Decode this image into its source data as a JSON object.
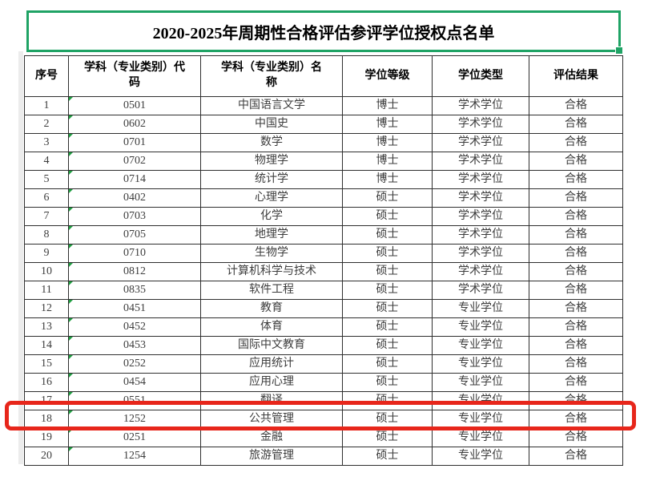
{
  "title": "2020-2025年周期性合格评估参评学位授权点名单",
  "table": {
    "headers": [
      "序号",
      "学科（专业类别）代码",
      "学科（专业类别）名称",
      "学位等级",
      "学位类型",
      "评估结果"
    ],
    "rows": [
      {
        "no": "1",
        "code": "0501",
        "name": "中国语言文学",
        "level": "博士",
        "type": "学术学位",
        "result": "合格"
      },
      {
        "no": "2",
        "code": "0602",
        "name": "中国史",
        "level": "博士",
        "type": "学术学位",
        "result": "合格"
      },
      {
        "no": "3",
        "code": "0701",
        "name": "数学",
        "level": "博士",
        "type": "学术学位",
        "result": "合格"
      },
      {
        "no": "4",
        "code": "0702",
        "name": "物理学",
        "level": "博士",
        "type": "学术学位",
        "result": "合格"
      },
      {
        "no": "5",
        "code": "0714",
        "name": "统计学",
        "level": "博士",
        "type": "学术学位",
        "result": "合格"
      },
      {
        "no": "6",
        "code": "0402",
        "name": "心理学",
        "level": "硕士",
        "type": "学术学位",
        "result": "合格"
      },
      {
        "no": "7",
        "code": "0703",
        "name": "化学",
        "level": "硕士",
        "type": "学术学位",
        "result": "合格"
      },
      {
        "no": "8",
        "code": "0705",
        "name": "地理学",
        "level": "硕士",
        "type": "学术学位",
        "result": "合格"
      },
      {
        "no": "9",
        "code": "0710",
        "name": "生物学",
        "level": "硕士",
        "type": "学术学位",
        "result": "合格"
      },
      {
        "no": "10",
        "code": "0812",
        "name": "计算机科学与技术",
        "level": "硕士",
        "type": "学术学位",
        "result": "合格"
      },
      {
        "no": "11",
        "code": "0835",
        "name": "软件工程",
        "level": "硕士",
        "type": "学术学位",
        "result": "合格"
      },
      {
        "no": "12",
        "code": "0451",
        "name": "教育",
        "level": "硕士",
        "type": "专业学位",
        "result": "合格"
      },
      {
        "no": "13",
        "code": "0452",
        "name": "体育",
        "level": "硕士",
        "type": "专业学位",
        "result": "合格"
      },
      {
        "no": "14",
        "code": "0453",
        "name": "国际中文教育",
        "level": "硕士",
        "type": "专业学位",
        "result": "合格"
      },
      {
        "no": "15",
        "code": "0252",
        "name": "应用统计",
        "level": "硕士",
        "type": "专业学位",
        "result": "合格"
      },
      {
        "no": "16",
        "code": "0454",
        "name": "应用心理",
        "level": "硕士",
        "type": "专业学位",
        "result": "合格"
      },
      {
        "no": "17",
        "code": "0551",
        "name": "翻译",
        "level": "硕士",
        "type": "专业学位",
        "result": "合格"
      },
      {
        "no": "18",
        "code": "1252",
        "name": "公共管理",
        "level": "硕士",
        "type": "专业学位",
        "result": "合格"
      },
      {
        "no": "19",
        "code": "0251",
        "name": "金融",
        "level": "硕士",
        "type": "专业学位",
        "result": "合格"
      },
      {
        "no": "20",
        "code": "1254",
        "name": "旅游管理",
        "level": "硕士",
        "type": "专业学位",
        "result": "合格"
      }
    ]
  },
  "highlight": {
    "row_no": "18",
    "color": "#e7261b"
  },
  "colors": {
    "selection_green": "#1fa365",
    "indicator_green": "#1e9e40",
    "grid_line": "#2f2f2f",
    "body_text": "#3d3d3d"
  }
}
